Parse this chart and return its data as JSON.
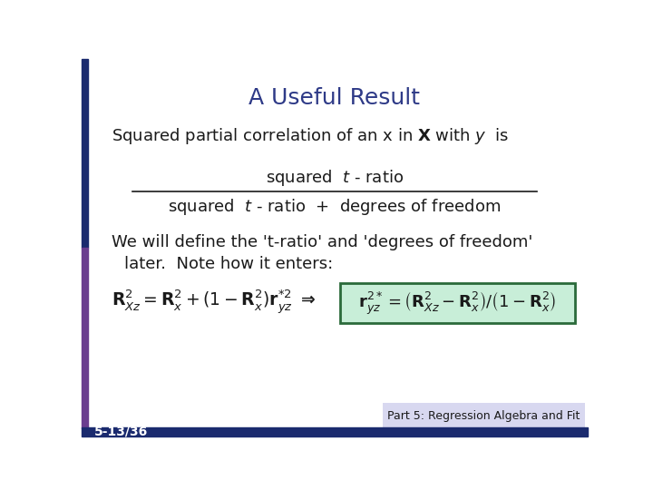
{
  "title": "A Useful Result",
  "title_color": "#2E3A87",
  "title_fontsize": 18,
  "bg_color": "#FFFFFF",
  "left_bar_dark": "#1a2a6e",
  "left_bar_purple": "#6A3D8F",
  "bottom_bar_color": "#1a2a6e",
  "slide_num": "5-13/36",
  "slide_label": "Part 5: Regression Algebra and Fit",
  "label_bg": "#D8D8F0",
  "text_color": "#1a1a1a",
  "fraction_line_color": "#1a1a1a",
  "highlight_bg": "#C8EED8",
  "highlight_border": "#2a6a3a"
}
